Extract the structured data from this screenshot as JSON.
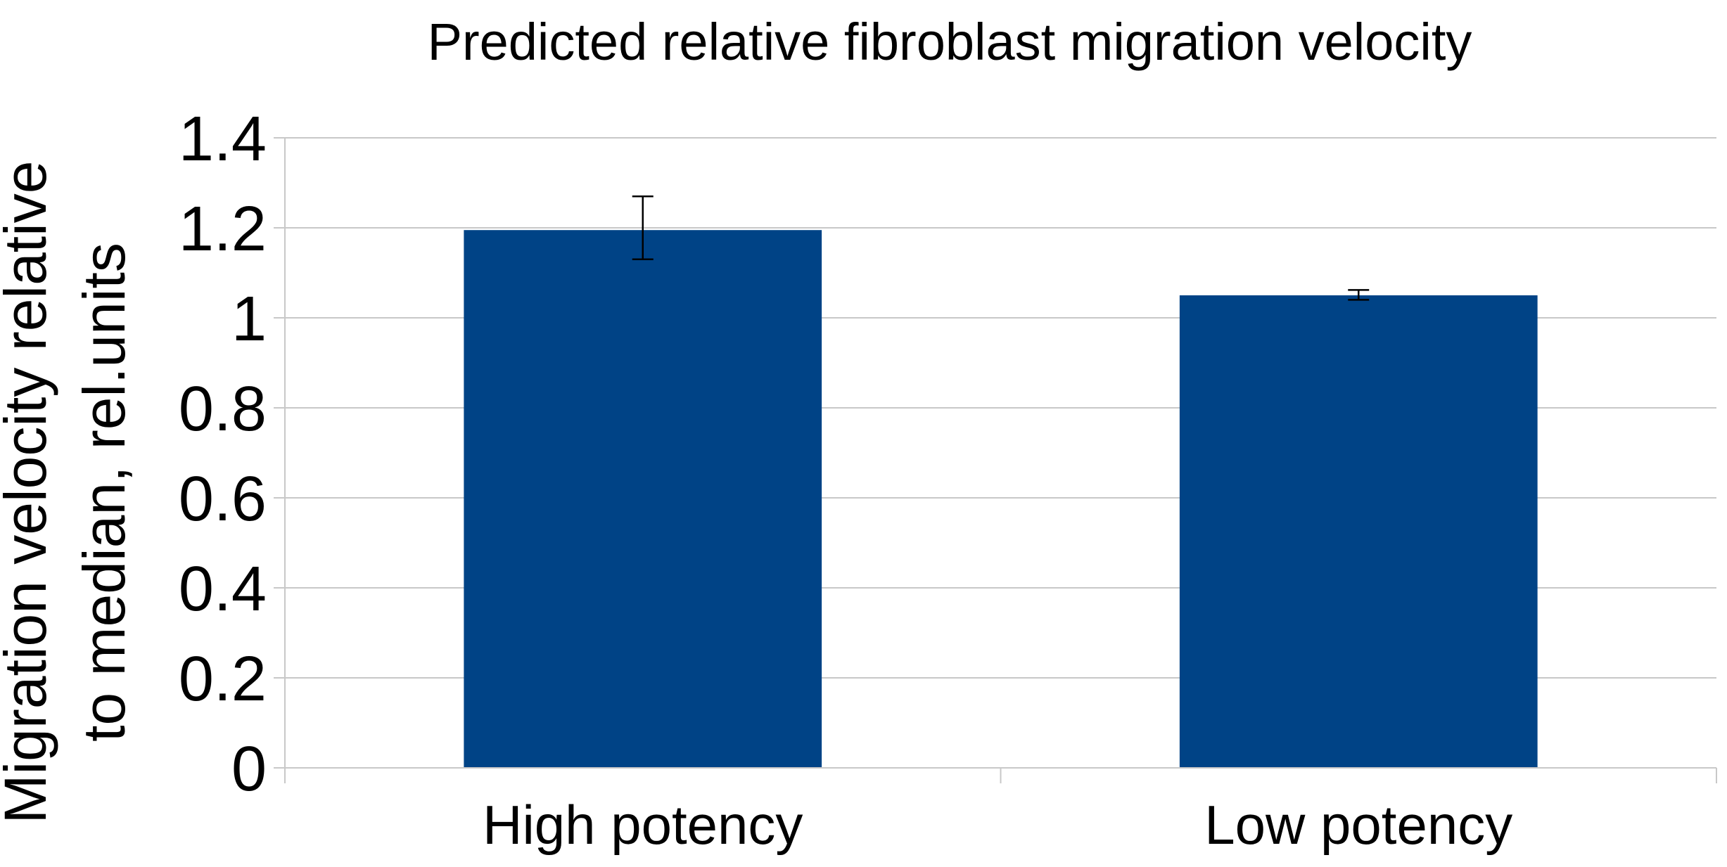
{
  "chart_data": {
    "type": "bar",
    "title": "Predicted relative fibroblast migration velocity",
    "ylabel_lines": [
      "Migration velocity relative",
      "to median, rel.units"
    ],
    "xlabel": "",
    "categories": [
      "High potency",
      "Low potency"
    ],
    "series": [
      {
        "values": [
          1.195,
          1.05
        ],
        "error_low": [
          1.13,
          1.04
        ],
        "error_high": [
          1.27,
          1.062
        ]
      }
    ],
    "ylim": [
      0,
      1.4
    ],
    "yticks": [
      0,
      0.2,
      0.4,
      0.6,
      0.8,
      1,
      1.2,
      1.4
    ],
    "ytick_labels": [
      "0",
      "0.2",
      "0.4",
      "0.6",
      "0.8",
      "1",
      "1.2",
      "1.4"
    ],
    "grid": true,
    "legend": "none",
    "bar_color": "#004386"
  }
}
